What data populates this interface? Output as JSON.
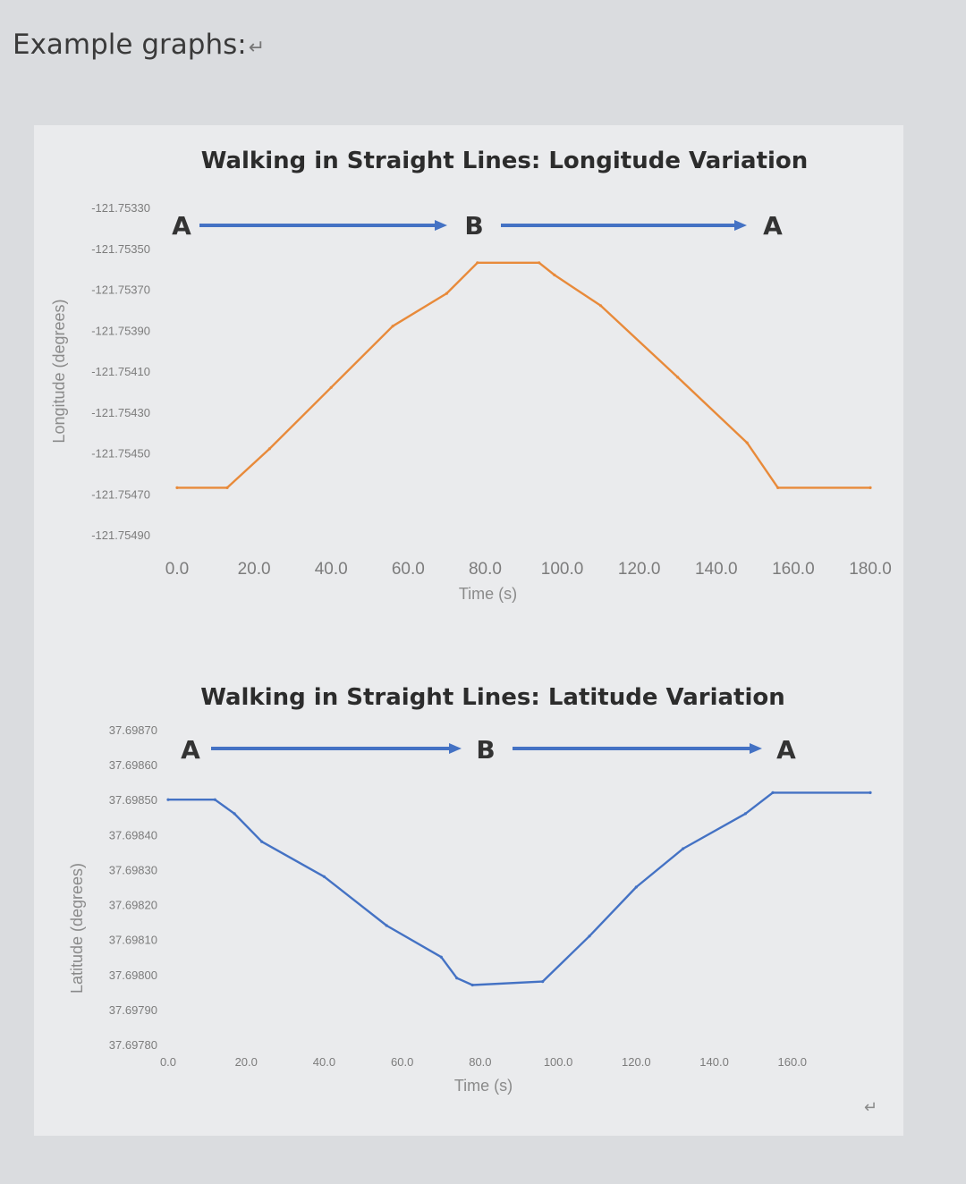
{
  "page": {
    "heading": "Example graphs:",
    "heading_mark": "↵",
    "bottom_mark": "↵"
  },
  "chart_data": [
    {
      "type": "line",
      "title": "Walking in Straight Lines: Longitude Variation",
      "xlabel": "Time (s)",
      "ylabel": "Longitude (degrees)",
      "xlim": [
        0,
        180
      ],
      "ylim": [
        -121.7549,
        -121.7533
      ],
      "x_ticks": [
        "0.0",
        "20.0",
        "40.0",
        "60.0",
        "80.0",
        "100.0",
        "120.0",
        "140.0",
        "160.0",
        "180.0"
      ],
      "y_ticks": [
        "-121.75330",
        "-121.75350",
        "-121.75370",
        "-121.75390",
        "-121.75410",
        "-121.75430",
        "-121.75450",
        "-121.75470",
        "-121.75490"
      ],
      "series": [
        {
          "color": "#e88a3a",
          "points": [
            [
              0,
              -121.75467
            ],
            [
              13,
              -121.75467
            ],
            [
              24,
              -121.75448
            ],
            [
              40,
              -121.75418
            ],
            [
              56,
              -121.75388
            ],
            [
              70,
              -121.75372
            ],
            [
              78,
              -121.75357
            ],
            [
              94,
              -121.75357
            ],
            [
              98,
              -121.75363
            ],
            [
              110,
              -121.75378
            ],
            [
              130,
              -121.75413
            ],
            [
              148,
              -121.75445
            ],
            [
              156,
              -121.75467
            ],
            [
              180,
              -121.75467
            ]
          ]
        }
      ],
      "annotations": {
        "labels": [
          "A",
          "B",
          "A"
        ],
        "arrow_color": "#4472c4"
      }
    },
    {
      "type": "line",
      "title": "Walking in Straight Lines: Latitude Variation",
      "xlabel": "Time (s)",
      "ylabel": "Latitude (degrees)",
      "xlim": [
        0,
        180
      ],
      "ylim": [
        37.6978,
        37.6987
      ],
      "x_ticks": [
        "0.0",
        "20.0",
        "40.0",
        "60.0",
        "80.0",
        "100.0",
        "120.0",
        "140.0",
        "160.0"
      ],
      "y_ticks": [
        "37.69870",
        "37.69860",
        "37.69850",
        "37.69840",
        "37.69830",
        "37.69820",
        "37.69810",
        "37.69800",
        "37.69790",
        "37.69780"
      ],
      "series": [
        {
          "color": "#4472c4",
          "points": [
            [
              0,
              37.6985
            ],
            [
              12,
              37.6985
            ],
            [
              17,
              37.69846
            ],
            [
              24,
              37.69838
            ],
            [
              40,
              37.69828
            ],
            [
              56,
              37.69814
            ],
            [
              70,
              37.69805
            ],
            [
              74,
              37.69799
            ],
            [
              78,
              37.69797
            ],
            [
              96,
              37.69798
            ],
            [
              108,
              37.69811
            ],
            [
              120,
              37.69825
            ],
            [
              132,
              37.69836
            ],
            [
              148,
              37.69846
            ],
            [
              155,
              37.69852
            ],
            [
              180,
              37.69852
            ]
          ]
        }
      ],
      "annotations": {
        "labels": [
          "A",
          "B",
          "A"
        ],
        "arrow_color": "#4472c4"
      }
    }
  ]
}
